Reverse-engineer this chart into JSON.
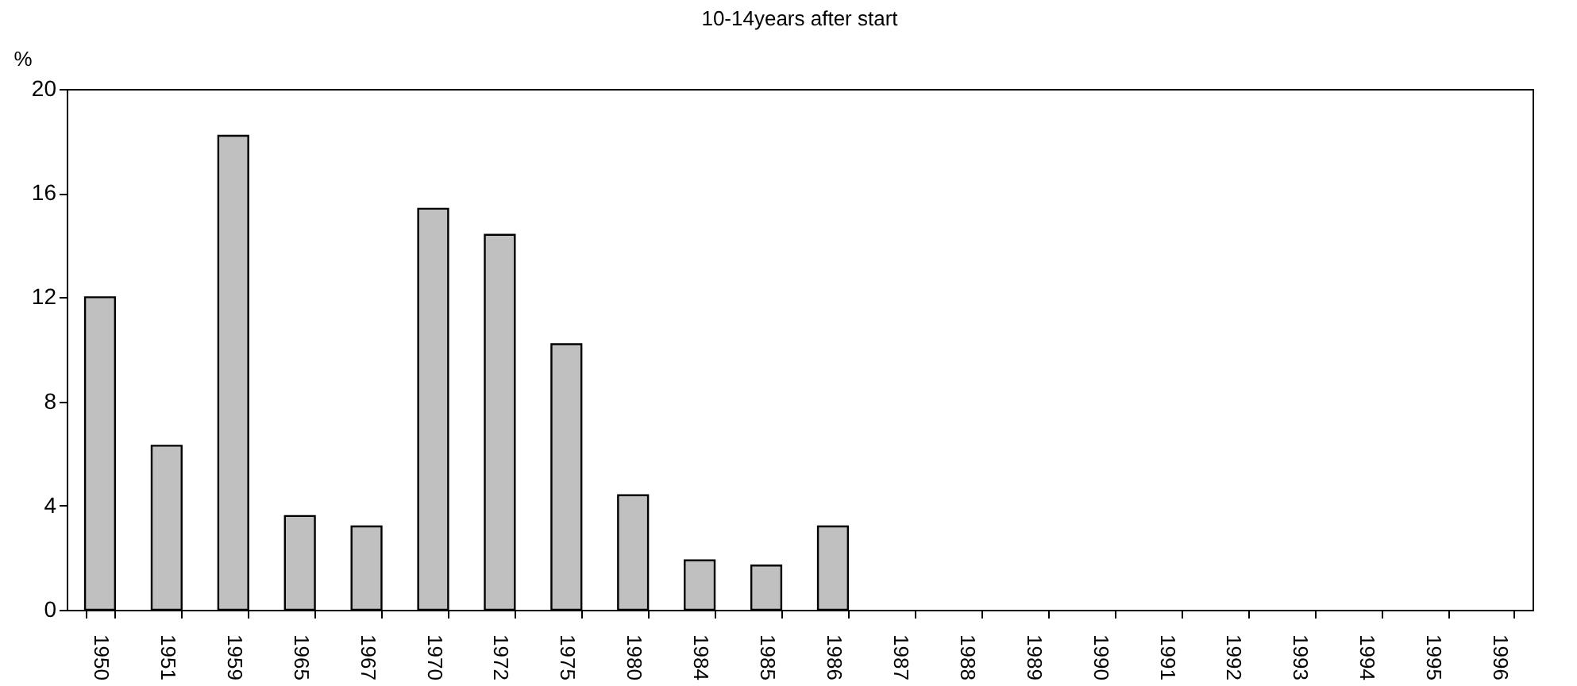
{
  "chart_data": {
    "type": "bar",
    "title": "10-14years after start",
    "ylabel": "%",
    "categories": [
      "1950",
      "1951",
      "1959",
      "1965",
      "1967",
      "1970",
      "1972",
      "1975",
      "1980",
      "1984",
      "1985",
      "1986",
      "1987",
      "1988",
      "1989",
      "1990",
      "1991",
      "1992",
      "1993",
      "1994",
      "1995",
      "1996"
    ],
    "values": [
      12,
      6.3,
      18.2,
      3.6,
      3.2,
      15.4,
      14.4,
      10.2,
      4.4,
      1.9,
      1.7,
      3.2,
      null,
      null,
      null,
      null,
      null,
      null,
      null,
      null,
      null,
      null
    ],
    "color": "#c0c0c0",
    "ylim": [
      0,
      20
    ],
    "yticks": [
      0,
      4,
      8,
      12,
      16,
      20
    ],
    "grid": false
  }
}
